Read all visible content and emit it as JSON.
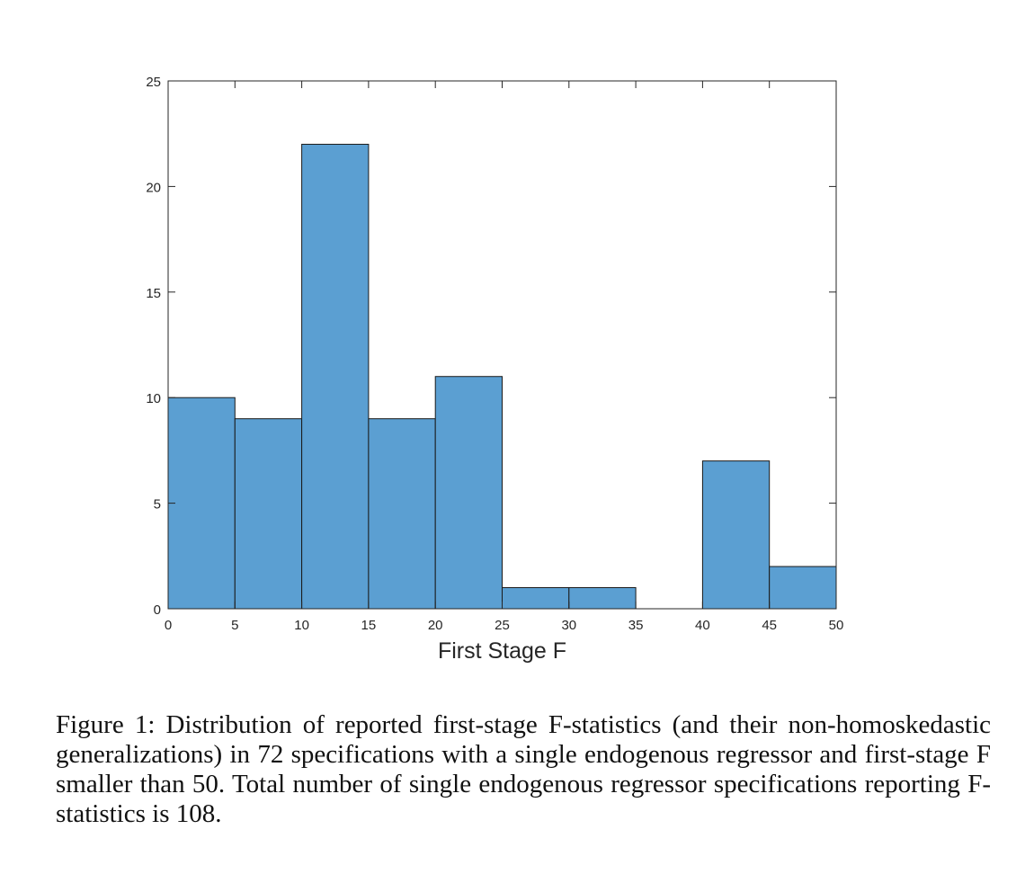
{
  "chart_data": {
    "type": "bar",
    "subtype": "histogram",
    "bin_edges": [
      0,
      5,
      10,
      15,
      20,
      25,
      30,
      35,
      40,
      45,
      50
    ],
    "values": [
      10,
      9,
      22,
      9,
      11,
      1,
      1,
      0,
      7,
      2
    ],
    "xlabel": "First Stage F",
    "ylabel": "",
    "xlim": [
      0,
      50
    ],
    "ylim": [
      0,
      25
    ],
    "x_ticks": [
      0,
      5,
      10,
      15,
      20,
      25,
      30,
      35,
      40,
      45,
      50
    ],
    "y_ticks": [
      0,
      5,
      10,
      15,
      20,
      25
    ],
    "bar_color": "#5b9fd2",
    "grid": false
  },
  "caption": "Figure 1: Distribution of reported first-stage F-statistics (and their non-homoskedastic generalizations) in 72 specifications with a single endogenous regressor and first-stage F smaller than 50. Total number of single endogenous regressor specifications reporting F-statistics is 108."
}
